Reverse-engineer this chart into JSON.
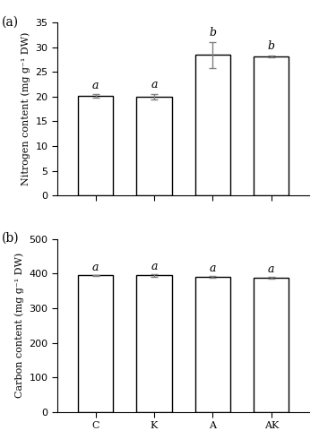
{
  "categories": [
    "C",
    "K",
    "A",
    "AK"
  ],
  "nitrogen_values": [
    20.1,
    20.0,
    28.4,
    28.1
  ],
  "nitrogen_errors": [
    0.35,
    0.55,
    2.7,
    0.25
  ],
  "nitrogen_letters": [
    "a",
    "a",
    "b",
    "b"
  ],
  "nitrogen_ylabel": "Nitrogen content (mg g⁻¹ DW)",
  "nitrogen_ylim": [
    0,
    35
  ],
  "nitrogen_yticks": [
    0,
    5,
    10,
    15,
    20,
    25,
    30,
    35
  ],
  "carbon_values": [
    395,
    395,
    390,
    388
  ],
  "carbon_errors": [
    1.5,
    3.5,
    2.0,
    2.5
  ],
  "carbon_letters": [
    "a",
    "a",
    "a",
    "a"
  ],
  "carbon_ylabel": "Carbon content (mg g⁻¹ DW)",
  "carbon_ylim": [
    0,
    500
  ],
  "carbon_yticks": [
    0,
    100,
    200,
    300,
    400,
    500
  ],
  "panel_a_label": "(a)",
  "panel_b_label": "(b)",
  "bar_color": "white",
  "bar_edgecolor": "black",
  "bar_linewidth": 1.0,
  "errorbar_color": "gray",
  "errorbar_capsize": 3,
  "errorbar_linewidth": 1.0,
  "letter_fontsize": 9,
  "label_fontsize": 8,
  "tick_fontsize": 8,
  "panel_label_fontsize": 10,
  "bar_width": 0.6
}
